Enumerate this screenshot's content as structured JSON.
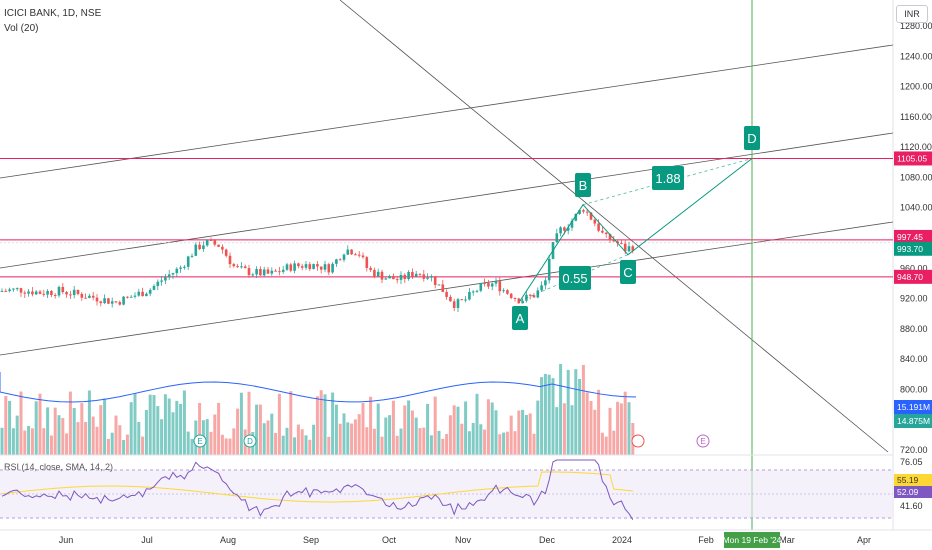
{
  "header": {
    "symbol": "ICICI BANK, 1D, NSE",
    "volume_label": "Vol (20)",
    "currency": "INR"
  },
  "rsi_label": "RSI (14, close, SMA, 14, 2)",
  "chart_data": {
    "type": "candlestick",
    "price_axis": {
      "range": [
        715,
        1282
      ],
      "ticks": [
        720,
        760,
        800,
        840,
        880,
        920,
        960,
        1000,
        1040,
        1080,
        1120,
        1160,
        1200,
        1240,
        1280
      ],
      "tick_labels": [
        "720.00",
        "760.00",
        "800.00",
        "840.00",
        "880.00",
        "920.00",
        "960.00",
        "1000.00",
        "1040.00",
        "1080.00",
        "1120.00",
        "1160.00",
        "1200.00",
        "1240.00",
        "1280.00"
      ]
    },
    "time_axis": {
      "labels": [
        "Jun",
        "Jul",
        "Aug",
        "Sep",
        "Oct",
        "Nov",
        "Dec",
        "2024",
        "Feb",
        "Mar",
        "Apr"
      ],
      "highlight_label": "Mon 19 Feb '24"
    },
    "price_markers": [
      {
        "value": 1105.05,
        "label": "1105.05",
        "color": "#e91e63"
      },
      {
        "value": 997.45,
        "label": "997.45",
        "color": "#e91e63"
      },
      {
        "value": 993.7,
        "label": "993.70",
        "color": "#089981"
      },
      {
        "value": 948.7,
        "label": "948.70",
        "color": "#e91e63"
      }
    ],
    "volume_markers": [
      {
        "label": "15.191M",
        "color": "#2962ff"
      },
      {
        "label": "14.875M",
        "color": "#26a69a"
      }
    ],
    "rsi_markers": [
      {
        "value": 55.19,
        "label": "55.19",
        "color": "#fdd835"
      },
      {
        "value": 52.09,
        "label": "52.09",
        "color": "#7e57c2"
      }
    ],
    "rsi_axis_labels": [
      {
        "value": 76.05,
        "label": "76.05"
      },
      {
        "value": 41.6,
        "label": "41.60"
      }
    ],
    "pattern_points": [
      {
        "label": "A",
        "value": 917
      },
      {
        "label": "B",
        "value": 1044
      },
      {
        "label": "C",
        "value": 978
      },
      {
        "label": "D",
        "value": 1105.05
      }
    ],
    "ratios": [
      {
        "label": "0.55",
        "between": "A-C"
      },
      {
        "label": "1.88",
        "between": "B-D"
      }
    ],
    "events": [
      "E",
      "D",
      "E"
    ],
    "colors": {
      "up": "#26a69a",
      "down": "#ef5350",
      "rsi": "#7e57c2",
      "rsi_ma": "#fdd835",
      "vol_ma": "#2962ff",
      "pattern": "#089981",
      "hline": "#e91e63"
    }
  }
}
